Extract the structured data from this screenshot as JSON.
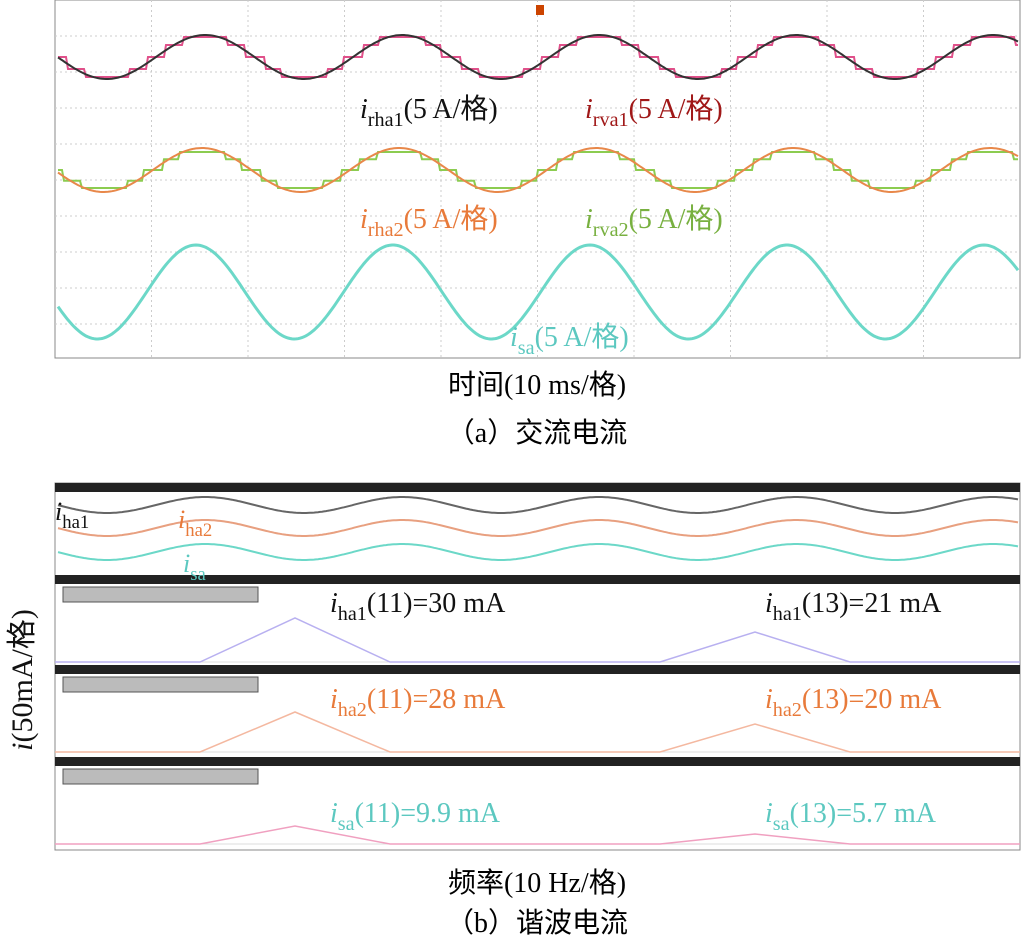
{
  "panel_a": {
    "labels": [
      {
        "var": "i",
        "sub": "rha1",
        "text": "(5 A/格)"
      },
      {
        "var": "i",
        "sub": "rva1",
        "text": "(5 A/格)"
      },
      {
        "var": "i",
        "sub": "rha2",
        "text": "(5 A/格)"
      },
      {
        "var": "i",
        "sub": "rva2",
        "text": "(5 A/格)"
      },
      {
        "var": "i",
        "sub": "sa",
        "text": "(5 A/格)"
      }
    ],
    "x_axis_label": "时间(10 ms/格)",
    "caption": "（a）交流电流"
  },
  "panel_b": {
    "wave_labels": [
      {
        "var": "i",
        "sub": "ha1"
      },
      {
        "var": "i",
        "sub": "ha2"
      },
      {
        "var": "i",
        "sub": "sa"
      }
    ],
    "fft_labels": [
      {
        "var": "i",
        "sub": "ha1",
        "text": "(11)=30 mA"
      },
      {
        "var": "i",
        "sub": "ha1",
        "text": "(13)=21 mA"
      },
      {
        "var": "i",
        "sub": "ha2",
        "text": "(11)=28 mA"
      },
      {
        "var": "i",
        "sub": "ha2",
        "text": "(13)=20 mA"
      },
      {
        "var": "i",
        "sub": "sa",
        "text": "(11)=9.9 mA"
      },
      {
        "var": "i",
        "sub": "sa",
        "text": "(13)=5.7 mA"
      }
    ],
    "y_axis_label": {
      "var": "i",
      "text": "(50mA/格)"
    },
    "x_axis_label": "频率(10 Hz/格)",
    "caption": "（b）谐波电流"
  }
}
